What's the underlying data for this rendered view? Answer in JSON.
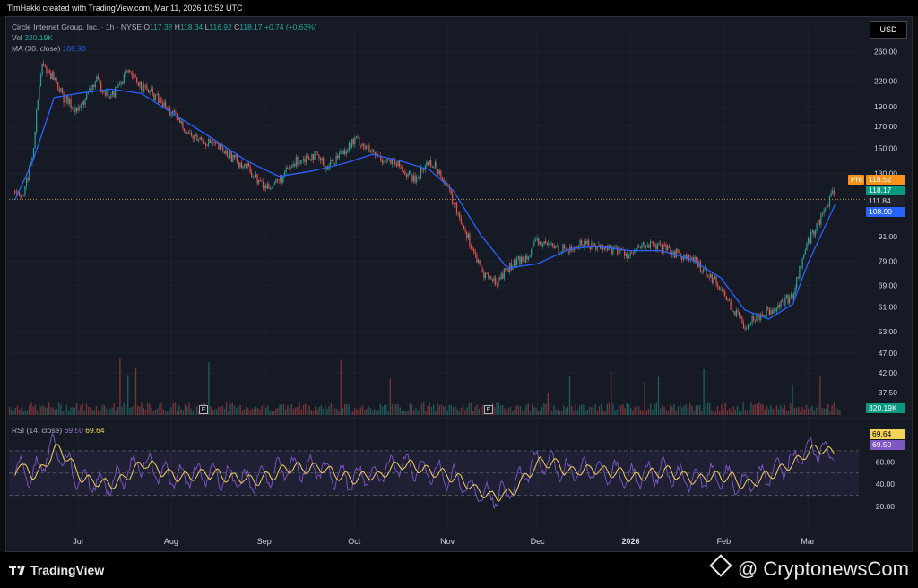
{
  "header": {
    "caption": "TimHakki created with TradingView.com, Mar 11, 2026 10:52 UTC"
  },
  "currency": "USD",
  "legend": {
    "symbol": "Circle Internet Group, Inc. · 1h · NYSE",
    "ohlc": [
      {
        "k": "O",
        "v": "117.38"
      },
      {
        "k": "H",
        "v": "118.34"
      },
      {
        "k": "L",
        "v": "116.92"
      },
      {
        "k": "C",
        "v": "118.17"
      }
    ],
    "change": "+0.74 (+0.63%)",
    "vol_label": "Vol",
    "vol_value": "320.19K",
    "ma_label": "MA (30, close)",
    "ma_value": "108.90",
    "rsi_label": "RSI (14, close)",
    "rsi_value": "69.50",
    "rsi_ma_value": "69.64"
  },
  "price_tags": {
    "pre_label": "Pre",
    "pre_value": "118.52",
    "last": "118.17",
    "level": "111.84",
    "ma": "108.90",
    "volume": "320.19K",
    "rsi_ma": "69.64",
    "rsi": "69.50"
  },
  "earnings_marker": "E",
  "colors": {
    "up": "#26a69a",
    "down": "#ef5350",
    "ma": "#2962ff",
    "rsi": "#7e57c2",
    "rsi_ma": "#f5d35b",
    "pre": "#f7931a",
    "level": "#2962ff"
  },
  "footer": {
    "brand": "TradingView",
    "watermark": "@ CryptonewsCom"
  },
  "chart_data": {
    "type": "line",
    "title": "Circle Internet Group, Inc. · 1h · NYSE",
    "scale": "log",
    "price_ticks": [
      260,
      220,
      190,
      170,
      150,
      130,
      111.84,
      91,
      79,
      69,
      61,
      53,
      47,
      42,
      37.5
    ],
    "x_ticks": [
      "Jul",
      "Aug",
      "Sep",
      "Oct",
      "Nov",
      "Dec",
      "2026",
      "Feb",
      "Mar"
    ],
    "rsi_ticks": [
      60,
      40,
      20
    ],
    "series": [
      {
        "name": "Price",
        "x": [
          "Jun 10",
          "Jun 13",
          "Jun 16",
          "Jun 19",
          "Jun 23",
          "Jun 26",
          "Jul 1",
          "Jul 7",
          "Jul 12",
          "Jul 17",
          "Jul 22",
          "Jul 27",
          "Aug 2",
          "Aug 8",
          "Aug 14",
          "Aug 20",
          "Aug 26",
          "Sep 1",
          "Sep 6",
          "Sep 12",
          "Sep 17",
          "Sep 22",
          "Sep 28",
          "Oct 2",
          "Oct 7",
          "Oct 12",
          "Oct 16",
          "Oct 21",
          "Oct 26",
          "Oct 30",
          "Nov 3",
          "Nov 8",
          "Nov 12",
          "Nov 17",
          "Nov 21",
          "Nov 26",
          "Dec 1",
          "Dec 6",
          "Dec 12",
          "Dec 16",
          "Dec 21",
          "Dec 26",
          "Jan 1",
          "Jan 6",
          "Jan 11",
          "Jan 16",
          "Jan 21",
          "Jan 26",
          "Jan 31",
          "Feb 4",
          "Feb 8",
          "Feb 12",
          "Feb 16",
          "Feb 20",
          "Feb 24",
          "Mar 1",
          "Mar 5",
          "Mar 10"
        ],
        "values": [
          118,
          115,
          145,
          240,
          225,
          200,
          185,
          220,
          200,
          230,
          215,
          200,
          180,
          160,
          155,
          145,
          135,
          120,
          125,
          140,
          145,
          135,
          150,
          158,
          145,
          140,
          135,
          125,
          140,
          130,
          110,
          90,
          75,
          70,
          76,
          80,
          88,
          86,
          84,
          88,
          86,
          85,
          82,
          87,
          85,
          83,
          80,
          75,
          68,
          60,
          55,
          58,
          60,
          62,
          65,
          88,
          100,
          118
        ]
      },
      {
        "name": "MA (30, close)",
        "x": [
          "Jun 10",
          "Jun 16",
          "Jun 23",
          "Jul 1",
          "Jul 12",
          "Jul 22",
          "Aug 2",
          "Aug 14",
          "Aug 26",
          "Sep 6",
          "Sep 17",
          "Sep 28",
          "Oct 7",
          "Oct 16",
          "Oct 26",
          "Nov 3",
          "Nov 12",
          "Nov 21",
          "Dec 1",
          "Dec 12",
          "Dec 21",
          "Jan 1",
          "Jan 11",
          "Jan 21",
          "Jan 31",
          "Feb 8",
          "Feb 16",
          "Feb 24",
          "Mar 1",
          "Mar 10"
        ],
        "values": [
          112,
          140,
          200,
          205,
          210,
          205,
          182,
          160,
          140,
          128,
          132,
          138,
          145,
          140,
          133,
          118,
          92,
          76,
          78,
          85,
          86,
          84,
          84,
          80,
          72,
          60,
          57,
          62,
          78,
          108.9
        ]
      }
    ],
    "rsi_series": {
      "x": [
        "Jun 10",
        "Jun 16",
        "Jun 23",
        "Jul 1",
        "Jul 12",
        "Jul 22",
        "Aug 2",
        "Aug 14",
        "Aug 26",
        "Sep 6",
        "Sep 17",
        "Sep 28",
        "Oct 7",
        "Oct 16",
        "Oct 26",
        "Nov 3",
        "Nov 12",
        "Nov 21",
        "Dec 1",
        "Dec 12",
        "Dec 21",
        "Jan 1",
        "Jan 11",
        "Jan 21",
        "Jan 31",
        "Feb 8",
        "Feb 16",
        "Feb 24",
        "Mar 1",
        "Mar 10"
      ],
      "values": [
        55,
        48,
        75,
        45,
        40,
        60,
        45,
        50,
        42,
        52,
        56,
        44,
        48,
        58,
        52,
        46,
        30,
        32,
        62,
        50,
        54,
        46,
        52,
        44,
        48,
        38,
        50,
        60,
        72,
        69.5
      ]
    }
  }
}
